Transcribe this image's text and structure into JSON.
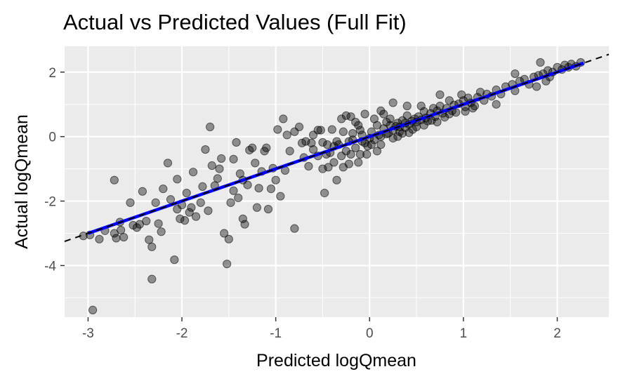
{
  "chart_data": {
    "type": "scatter",
    "title": "Actual vs Predicted Values (Full Fit)",
    "xlabel": "Predicted logQmean",
    "ylabel": "Actual logQmean",
    "xlim": [
      -3.25,
      2.55
    ],
    "ylim": [
      -5.6,
      2.8
    ],
    "xticks": [
      {
        "value": -3,
        "label": "-3"
      },
      {
        "value": -2,
        "label": "-2"
      },
      {
        "value": -1,
        "label": "-1"
      },
      {
        "value": 0,
        "label": "0"
      },
      {
        "value": 1,
        "label": "1"
      },
      {
        "value": 2,
        "label": "2"
      }
    ],
    "yticks": [
      {
        "value": 2,
        "label": "2"
      },
      {
        "value": 0,
        "label": "0"
      },
      {
        "value": -2,
        "label": "-2"
      },
      {
        "value": -4,
        "label": "-4"
      }
    ],
    "grid": true,
    "colors": {
      "panel": "#ebebeb",
      "grid": "#ffffff",
      "points": "#000000",
      "fit_line": "#0000ff",
      "reference_line": "#000000"
    },
    "reference_line": {
      "label": "y = x",
      "style": "dashed",
      "slope": 1,
      "intercept": 0
    },
    "fit_line": {
      "slope": 1.0,
      "intercept": 0.0,
      "x_range": [
        -3.0,
        2.28
      ]
    },
    "points": [
      [
        -2.95,
        -5.38
      ],
      [
        -2.98,
        -3.05
      ],
      [
        -3.05,
        -3.08
      ],
      [
        -2.82,
        -2.92
      ],
      [
        -2.88,
        -3.18
      ],
      [
        -2.72,
        -3.0
      ],
      [
        -2.7,
        -3.15
      ],
      [
        -2.66,
        -2.65
      ],
      [
        -2.62,
        -3.12
      ],
      [
        -2.65,
        -2.9
      ],
      [
        -2.72,
        -1.35
      ],
      [
        -2.55,
        -2.05
      ],
      [
        -2.45,
        -2.72
      ],
      [
        -2.48,
        -2.82
      ],
      [
        -2.38,
        -2.62
      ],
      [
        -2.35,
        -3.2
      ],
      [
        -2.32,
        -3.42
      ],
      [
        -2.32,
        -4.42
      ],
      [
        -2.25,
        -2.7
      ],
      [
        -2.22,
        -2.95
      ],
      [
        -2.2,
        -1.62
      ],
      [
        -2.15,
        -0.82
      ],
      [
        -2.12,
        -1.95
      ],
      [
        -2.08,
        -3.82
      ],
      [
        -2.05,
        -1.32
      ],
      [
        -2.02,
        -2.55
      ],
      [
        -2.0,
        -2.12
      ],
      [
        -1.97,
        -2.6
      ],
      [
        -1.95,
        -1.75
      ],
      [
        -1.92,
        -2.35
      ],
      [
        -1.88,
        -1.1
      ],
      [
        -1.85,
        -2.48
      ],
      [
        -1.8,
        -2.05
      ],
      [
        -1.75,
        -0.4
      ],
      [
        -1.72,
        -2.3
      ],
      [
        -1.7,
        0.3
      ],
      [
        -1.65,
        -1.52
      ],
      [
        -1.6,
        -1.0
      ],
      [
        -1.58,
        -0.68
      ],
      [
        -1.55,
        -3.0
      ],
      [
        -1.52,
        -3.95
      ],
      [
        -1.5,
        -3.18
      ],
      [
        -1.48,
        -2.05
      ],
      [
        -1.45,
        -0.7
      ],
      [
        -1.42,
        -0.18
      ],
      [
        -1.4,
        -1.9
      ],
      [
        -1.38,
        -1.15
      ],
      [
        -1.35,
        -2.55
      ],
      [
        -1.33,
        -2.72
      ],
      [
        -1.3,
        -1.5
      ],
      [
        -1.28,
        -0.42
      ],
      [
        -1.25,
        -0.35
      ],
      [
        -1.22,
        -0.82
      ],
      [
        -1.18,
        -1.6
      ],
      [
        -1.15,
        -1.08
      ],
      [
        -1.12,
        -0.45
      ],
      [
        -1.08,
        -2.25
      ],
      [
        -1.05,
        -1.62
      ],
      [
        -1.03,
        -0.98
      ],
      [
        -1.0,
        -1.35
      ],
      [
        -0.98,
        0.22
      ],
      [
        -0.92,
        0.55
      ],
      [
        -0.88,
        0.05
      ],
      [
        -0.85,
        -0.45
      ],
      [
        -0.8,
        -2.85
      ],
      [
        -0.75,
        0.3
      ],
      [
        -0.7,
        -0.65
      ],
      [
        -0.65,
        -0.92
      ],
      [
        -0.6,
        -0.4
      ],
      [
        -0.55,
        0.2
      ],
      [
        -0.52,
        0.2
      ],
      [
        -0.5,
        -0.18
      ],
      [
        -0.48,
        -1.75
      ],
      [
        -0.46,
        -0.55
      ],
      [
        -0.44,
        -0.95
      ],
      [
        -0.42,
        -0.5
      ],
      [
        -0.4,
        0.22
      ],
      [
        -0.38,
        -0.3
      ],
      [
        -0.35,
        -1.35
      ],
      [
        -0.33,
        -0.25
      ],
      [
        -0.3,
        -0.6
      ],
      [
        -0.28,
        0.15
      ],
      [
        -0.25,
        -0.45
      ],
      [
        -0.22,
        -0.85
      ],
      [
        -0.2,
        0.62
      ],
      [
        -0.18,
        -0.1
      ],
      [
        -0.15,
        -0.35
      ],
      [
        -0.12,
        0.35
      ],
      [
        -0.1,
        -0.55
      ],
      [
        -0.08,
        0.05
      ],
      [
        -0.05,
        -0.2
      ],
      [
        -0.03,
        -0.55
      ],
      [
        0.0,
        -0.05
      ],
      [
        0.02,
        0.15
      ],
      [
        0.05,
        -0.1
      ],
      [
        0.08,
        0.35
      ],
      [
        0.1,
        0.05
      ],
      [
        0.12,
        -0.25
      ],
      [
        0.15,
        0.25
      ],
      [
        0.18,
        0.45
      ],
      [
        0.2,
        0.1
      ],
      [
        0.22,
        0.55
      ],
      [
        0.25,
        0.2
      ],
      [
        0.28,
        0.32
      ],
      [
        0.3,
        0.42
      ],
      [
        0.32,
        0.15
      ],
      [
        0.35,
        0.5
      ],
      [
        0.38,
        0.28
      ],
      [
        0.4,
        0.65
      ],
      [
        0.42,
        0.38
      ],
      [
        0.45,
        0.48
      ],
      [
        0.48,
        0.55
      ],
      [
        0.5,
        0.3
      ],
      [
        0.52,
        0.62
      ],
      [
        0.55,
        0.52
      ],
      [
        0.58,
        0.78
      ],
      [
        0.6,
        0.58
      ],
      [
        0.62,
        0.48
      ],
      [
        0.65,
        0.72
      ],
      [
        0.68,
        0.88
      ],
      [
        0.7,
        0.62
      ],
      [
        0.72,
        0.8
      ],
      [
        0.75,
        0.95
      ],
      [
        0.78,
        0.72
      ],
      [
        0.8,
        0.6
      ],
      [
        0.82,
        0.88
      ],
      [
        0.85,
        1.12
      ],
      [
        0.88,
        0.8
      ],
      [
        0.9,
        0.98
      ],
      [
        0.95,
        1.02
      ],
      [
        1.0,
        1.12
      ],
      [
        1.02,
        0.92
      ],
      [
        1.05,
        1.2
      ],
      [
        1.08,
        1.05
      ],
      [
        1.12,
        0.95
      ],
      [
        1.15,
        1.22
      ],
      [
        1.18,
        1.38
      ],
      [
        1.22,
        1.12
      ],
      [
        1.25,
        1.32
      ],
      [
        1.3,
        1.25
      ],
      [
        1.35,
        1.45
      ],
      [
        1.4,
        1.32
      ],
      [
        1.45,
        1.55
      ],
      [
        1.52,
        1.62
      ],
      [
        1.55,
        1.42
      ],
      [
        1.6,
        1.72
      ],
      [
        1.65,
        1.78
      ],
      [
        1.7,
        1.62
      ],
      [
        1.75,
        1.85
      ],
      [
        1.78,
        1.55
      ],
      [
        1.8,
        1.9
      ],
      [
        1.85,
        1.95
      ],
      [
        1.88,
        1.72
      ],
      [
        1.9,
        2.05
      ],
      [
        1.92,
        1.85
      ],
      [
        1.95,
        2.0
      ],
      [
        2.0,
        2.15
      ],
      [
        2.05,
        2.08
      ],
      [
        2.08,
        2.22
      ],
      [
        2.12,
        2.15
      ],
      [
        2.15,
        2.25
      ],
      [
        2.2,
        2.18
      ],
      [
        2.25,
        2.3
      ],
      [
        1.82,
        2.3
      ],
      [
        1.55,
        1.95
      ],
      [
        1.35,
        1.0
      ],
      [
        1.1,
        0.88
      ],
      [
        0.98,
        1.3
      ],
      [
        0.75,
        1.3
      ],
      [
        0.55,
        0.95
      ],
      [
        0.4,
        0.95
      ],
      [
        0.25,
        1.05
      ],
      [
        0.12,
        0.8
      ],
      [
        -0.05,
        0.7
      ],
      [
        -0.25,
        0.65
      ],
      [
        -0.3,
        0.55
      ],
      [
        -0.15,
        0.45
      ],
      [
        0.05,
        0.55
      ],
      [
        0.15,
        0.7
      ],
      [
        0.22,
        0.35
      ],
      [
        -0.02,
        -0.3
      ],
      [
        0.08,
        -0.45
      ],
      [
        -0.12,
        -0.8
      ],
      [
        -0.2,
        -0.55
      ],
      [
        -0.38,
        -0.8
      ],
      [
        -0.45,
        -0.25
      ],
      [
        -0.55,
        -0.6
      ],
      [
        -0.6,
        0.05
      ],
      [
        -0.68,
        -0.15
      ],
      [
        -0.8,
        0.15
      ],
      [
        0.3,
        0.0
      ],
      [
        0.35,
        0.1
      ],
      [
        0.42,
        0.12
      ],
      [
        0.5,
        0.45
      ],
      [
        0.58,
        0.35
      ],
      [
        0.66,
        0.5
      ],
      [
        0.72,
        0.45
      ],
      [
        0.85,
        0.7
      ],
      [
        0.92,
        0.75
      ],
      [
        1.02,
        0.78
      ],
      [
        -0.1,
        0.2
      ],
      [
        -0.18,
        0.1
      ],
      [
        -0.08,
        -0.15
      ],
      [
        0.02,
        -0.25
      ],
      [
        0.12,
        0.0
      ],
      [
        0.18,
        0.08
      ],
      [
        0.25,
        -0.05
      ],
      [
        0.32,
        0.3
      ],
      [
        0.38,
        0.42
      ],
      [
        0.46,
        0.22
      ],
      [
        -1.62,
        -1.3
      ],
      [
        -1.68,
        -0.9
      ],
      [
        -1.78,
        -1.55
      ],
      [
        -1.9,
        -2.2
      ],
      [
        -2.05,
        -2.25
      ],
      [
        -2.28,
        -2.05
      ],
      [
        -2.42,
        -1.7
      ],
      [
        -2.52,
        -2.75
      ],
      [
        -1.45,
        -1.68
      ],
      [
        -1.35,
        -1.35
      ],
      [
        -1.2,
        -2.2
      ],
      [
        -1.1,
        -0.35
      ],
      [
        -0.95,
        -1.85
      ],
      [
        -0.9,
        -1.05
      ],
      [
        -0.72,
        -0.2
      ],
      [
        -0.62,
        -0.2
      ],
      [
        -0.5,
        -1.0
      ],
      [
        -0.35,
        -0.15
      ],
      [
        -0.28,
        -0.95
      ],
      [
        -0.22,
        -0.15
      ]
    ]
  }
}
